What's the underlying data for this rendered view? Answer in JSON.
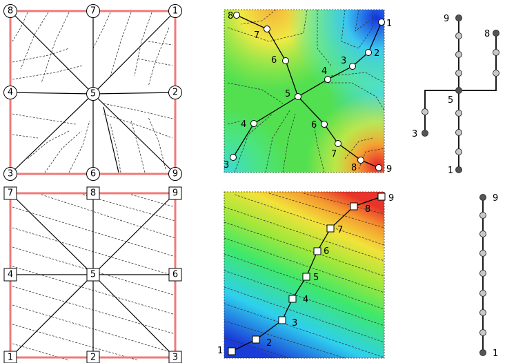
{
  "top_grid": {
    "nodes": [
      {
        "id": "n8",
        "label": "8"
      },
      {
        "id": "n7",
        "label": "7"
      },
      {
        "id": "n1",
        "label": "1"
      },
      {
        "id": "n4",
        "label": "4"
      },
      {
        "id": "n5",
        "label": "5"
      },
      {
        "id": "n2",
        "label": "2"
      },
      {
        "id": "n3",
        "label": "3"
      },
      {
        "id": "n6",
        "label": "6"
      },
      {
        "id": "n9",
        "label": "9"
      }
    ]
  },
  "bottom_grid": {
    "nodes": [
      {
        "id": "s7",
        "label": "7"
      },
      {
        "id": "s8",
        "label": "8"
      },
      {
        "id": "s9",
        "label": "9"
      },
      {
        "id": "s4",
        "label": "4"
      },
      {
        "id": "s5",
        "label": "5"
      },
      {
        "id": "s6",
        "label": "6"
      },
      {
        "id": "s1",
        "label": "1"
      },
      {
        "id": "s2",
        "label": "2"
      },
      {
        "id": "s3",
        "label": "3"
      }
    ]
  },
  "top_heatmap": {
    "labels": [
      {
        "id": "h8",
        "text": "8"
      },
      {
        "id": "h7",
        "text": "7"
      },
      {
        "id": "h6a",
        "text": "6"
      },
      {
        "id": "h1",
        "text": "1"
      },
      {
        "id": "h2",
        "text": "2"
      },
      {
        "id": "h3",
        "text": "3"
      },
      {
        "id": "h4a",
        "text": "4"
      },
      {
        "id": "h5",
        "text": "5"
      },
      {
        "id": "h4b",
        "text": "4"
      },
      {
        "id": "h6b",
        "text": "6"
      },
      {
        "id": "h3b",
        "text": "3"
      },
      {
        "id": "h7b",
        "text": "7"
      },
      {
        "id": "h8b",
        "text": "8"
      },
      {
        "id": "h9",
        "text": "9"
      }
    ]
  },
  "bottom_heatmap": {
    "labels": [
      {
        "id": "b9",
        "text": "9"
      },
      {
        "id": "b8",
        "text": "8"
      },
      {
        "id": "b7",
        "text": "7"
      },
      {
        "id": "b6",
        "text": "6"
      },
      {
        "id": "b5",
        "text": "5"
      },
      {
        "id": "b4",
        "text": "4"
      },
      {
        "id": "b3",
        "text": "3"
      },
      {
        "id": "b2",
        "text": "2"
      },
      {
        "id": "b1",
        "text": "1"
      }
    ]
  },
  "top_tree": {
    "labels": [
      {
        "id": "t9",
        "text": "9"
      },
      {
        "id": "t8",
        "text": "8"
      },
      {
        "id": "t5",
        "text": "5"
      },
      {
        "id": "t3",
        "text": "3"
      },
      {
        "id": "t1",
        "text": "1"
      }
    ]
  },
  "bottom_tree": {
    "labels": [
      {
        "id": "c9",
        "text": "9"
      },
      {
        "id": "c1",
        "text": "1"
      }
    ]
  },
  "colors": {
    "frame": "#f07878",
    "edge": "#000000",
    "contour": "#333333",
    "node_fill": "#ffffff",
    "tree_node": "#c8c8c8",
    "tree_end": "#555555"
  }
}
